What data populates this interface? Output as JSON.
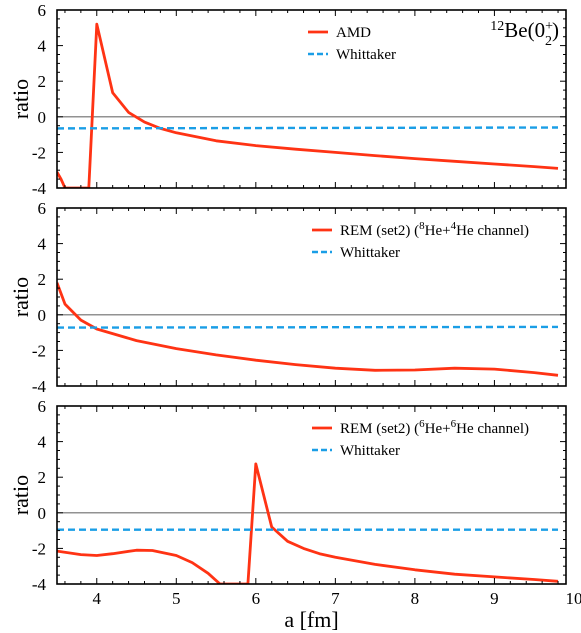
{
  "chart_data": [
    {
      "type": "line",
      "title": "",
      "annotation": "<tspan baseline-shift=\"super\" font-size=\"14\">12</tspan>Be(0<tspan baseline-shift=\"super\" font-size=\"14\">+</tspan><tspan dx=\"-8\" baseline-shift=\"sub\" font-size=\"14\">2</tspan>)",
      "xlabel": "",
      "ylabel": "ratio",
      "xlim": [
        3.5,
        9.9
      ],
      "ylim": [
        -4,
        6
      ],
      "yticks": [
        6,
        4,
        2,
        0,
        -2,
        -4
      ],
      "xticks": [
        4,
        5,
        6,
        7,
        8,
        9,
        10
      ],
      "show_xtick_labels": false,
      "legend_position": "top-right",
      "series": [
        {
          "name": "AMD",
          "color": "#ff3314",
          "style": "solid",
          "x": [
            3.5,
            3.55,
            3.6,
            3.9,
            4.0,
            4.2,
            4.4,
            4.6,
            4.8,
            5.0,
            5.5,
            6.0,
            6.5,
            7.0,
            7.5,
            8.0,
            8.5,
            9.0,
            9.5,
            9.8
          ],
          "y": [
            -3.1,
            -3.5,
            -4.0,
            -4.0,
            5.2,
            1.35,
            0.25,
            -0.3,
            -0.65,
            -0.9,
            -1.35,
            -1.62,
            -1.82,
            -2.0,
            -2.18,
            -2.35,
            -2.5,
            -2.65,
            -2.8,
            -2.9
          ]
        },
        {
          "name": "Whittaker",
          "color": "#1a9ee6",
          "style": "dashed",
          "x": [
            3.5,
            9.8
          ],
          "y": [
            -0.65,
            -0.6
          ]
        }
      ]
    },
    {
      "type": "line",
      "title": "",
      "annotation": "",
      "xlabel": "",
      "ylabel": "ratio",
      "xlim": [
        3.5,
        9.9
      ],
      "ylim": [
        -4,
        6
      ],
      "yticks": [
        6,
        4,
        2,
        0,
        -2,
        -4
      ],
      "xticks": [
        4,
        5,
        6,
        7,
        8,
        9,
        10
      ],
      "show_xtick_labels": false,
      "legend_position": "top-right",
      "series": [
        {
          "name": "REM (set2) (<tspan baseline-shift=\"super\" font-size=\"11\">8</tspan>He+<tspan baseline-shift=\"super\" font-size=\"11\">4</tspan>He channel)",
          "color": "#ff3314",
          "style": "solid",
          "x": [
            3.5,
            3.6,
            3.8,
            4.0,
            4.5,
            5.0,
            5.5,
            6.0,
            6.5,
            7.0,
            7.5,
            8.0,
            8.5,
            9.0,
            9.5,
            9.8
          ],
          "y": [
            1.8,
            0.6,
            -0.3,
            -0.8,
            -1.45,
            -1.9,
            -2.25,
            -2.55,
            -2.8,
            -3.0,
            -3.12,
            -3.1,
            -3.0,
            -3.05,
            -3.25,
            -3.4
          ]
        },
        {
          "name": "Whittaker",
          "color": "#1a9ee6",
          "style": "dashed",
          "x": [
            3.5,
            9.8
          ],
          "y": [
            -0.72,
            -0.68
          ]
        }
      ]
    },
    {
      "type": "line",
      "title": "",
      "annotation": "",
      "xlabel": "a [fm]",
      "ylabel": "ratio",
      "xlim": [
        3.5,
        9.9
      ],
      "ylim": [
        -4,
        6
      ],
      "yticks": [
        6,
        4,
        2,
        0,
        -2,
        -4
      ],
      "xticks": [
        4,
        5,
        6,
        7,
        8,
        9,
        10
      ],
      "show_xtick_labels": true,
      "legend_position": "top-right",
      "series": [
        {
          "name": "REM (set2) (<tspan baseline-shift=\"super\" font-size=\"11\">6</tspan>He+<tspan baseline-shift=\"super\" font-size=\"11\">6</tspan>He channel)",
          "color": "#ff3314",
          "style": "solid",
          "x": [
            3.5,
            3.8,
            4.0,
            4.2,
            4.5,
            4.7,
            5.0,
            5.2,
            5.4,
            5.55,
            5.9,
            6.0,
            6.2,
            6.4,
            6.6,
            6.8,
            7.0,
            7.5,
            8.0,
            8.5,
            9.0,
            9.5,
            9.8
          ],
          "y": [
            -2.15,
            -2.35,
            -2.4,
            -2.3,
            -2.1,
            -2.12,
            -2.4,
            -2.8,
            -3.4,
            -4.0,
            -4.0,
            2.75,
            -0.8,
            -1.6,
            -2.0,
            -2.3,
            -2.5,
            -2.9,
            -3.2,
            -3.45,
            -3.6,
            -3.75,
            -3.85
          ]
        },
        {
          "name": "Whittaker",
          "color": "#1a9ee6",
          "style": "dashed",
          "x": [
            3.5,
            9.8
          ],
          "y": [
            -0.95,
            -0.95
          ]
        }
      ]
    }
  ]
}
